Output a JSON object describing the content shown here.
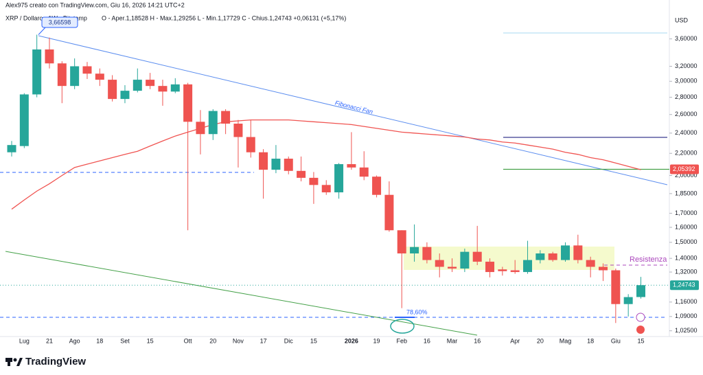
{
  "header": "Alex975 creato con TradingView.com, Giu 16, 2026 14:21 UTC+2",
  "brand": "TradingView",
  "chart_data": {
    "type": "candlestick",
    "title": "XRP / Dollaro · 1W · Bitstamp",
    "subtitle": "O - Aper.1,18528  H - Max.1,29256  L - Min.1,17729  C - Chius.1,24743  +0,06131 (+5,17%)",
    "y_unit": "USD",
    "log": true,
    "up_color": "#26a69a",
    "down_color": "#ef5350",
    "categories": [
      null,
      "Lug",
      null,
      "21",
      null,
      "Ago",
      null,
      "18",
      null,
      "Set",
      null,
      "15",
      null,
      null,
      "Ott",
      null,
      "20",
      null,
      "Nov",
      null,
      "17",
      null,
      "Dic",
      null,
      "15",
      null,
      null,
      "2026",
      null,
      "19",
      null,
      "Feb",
      null,
      "16",
      null,
      "Mar",
      null,
      "16",
      null,
      null,
      "Apr",
      null,
      "20",
      null,
      "Mag",
      null,
      "18",
      null,
      "Giu",
      null,
      "15"
    ],
    "open": [
      2.21,
      2.27,
      2.835,
      3.44,
      3.24,
      2.94,
      3.2,
      3.1,
      3.02,
      2.78,
      2.88,
      3.02,
      2.94,
      2.87,
      2.96,
      2.52,
      2.39,
      2.64,
      2.5,
      2.36,
      2.21,
      2.05,
      2.15,
      2.04,
      1.98,
      1.92,
      1.86,
      2.1,
      2.07,
      1.99,
      1.84,
      1.58,
      1.43,
      1.47,
      1.39,
      1.35,
      1.34,
      1.44,
      1.38,
      1.335,
      1.33,
      1.32,
      1.39,
      1.43,
      1.39,
      1.48,
      1.39,
      1.35,
      1.33,
      1.15,
      1.18528
    ],
    "high": [
      2.32,
      2.85,
      3.66598,
      3.62,
      3.27,
      3.31,
      3.26,
      3.17,
      3.08,
      2.95,
      3.17,
      3.11,
      3.02,
      3.04,
      2.98,
      2.65,
      2.66,
      2.66,
      2.54,
      2.54,
      2.24,
      2.28,
      2.17,
      2.17,
      2.03,
      1.96,
      2.11,
      2.41,
      2.22,
      2.0,
      1.95,
      1.58,
      1.62,
      1.5,
      1.43,
      1.4,
      1.46,
      1.61,
      1.4,
      1.35,
      1.39,
      1.51,
      1.45,
      1.44,
      1.5,
      1.55,
      1.41,
      1.37,
      1.34,
      1.2,
      1.29256
    ],
    "low": [
      2.17,
      2.25,
      2.8,
      3.17,
      2.73,
      2.9,
      3.03,
      2.94,
      2.75,
      2.73,
      2.86,
      2.9,
      2.7,
      2.85,
      1.58,
      2.19,
      2.33,
      2.39,
      2.07,
      2.16,
      1.81,
      2.02,
      2.01,
      1.95,
      1.77,
      1.84,
      1.81,
      2.05,
      1.96,
      1.82,
      1.57,
      1.13,
      1.38,
      1.37,
      1.29,
      1.32,
      1.32,
      1.36,
      1.29,
      1.3,
      1.31,
      1.31,
      1.37,
      1.38,
      1.38,
      1.37,
      1.29,
      1.27,
      1.06,
      1.09,
      1.17729
    ],
    "close": [
      2.28,
      2.835,
      3.44,
      3.24,
      2.94,
      3.2,
      3.1,
      3.02,
      2.78,
      2.88,
      3.02,
      2.94,
      2.87,
      2.96,
      2.52,
      2.39,
      2.64,
      2.5,
      2.36,
      2.21,
      2.05,
      2.15,
      2.04,
      1.98,
      1.92,
      1.86,
      2.1,
      2.07,
      1.99,
      1.84,
      1.58,
      1.43,
      1.47,
      1.39,
      1.35,
      1.34,
      1.44,
      1.38,
      1.32,
      1.325,
      1.32,
      1.39,
      1.43,
      1.39,
      1.48,
      1.39,
      1.35,
      1.33,
      1.15,
      1.185,
      1.24743
    ],
    "series": [
      {
        "color": "#f05350",
        "values": [
          1.73,
          1.8,
          1.87,
          1.93,
          2.0,
          2.07,
          2.1,
          2.13,
          2.16,
          2.19,
          2.22,
          2.27,
          2.32,
          2.37,
          2.41,
          2.45,
          2.49,
          2.52,
          2.53,
          2.54,
          2.54,
          2.54,
          2.54,
          2.53,
          2.52,
          2.51,
          2.5,
          2.49,
          2.47,
          2.45,
          2.43,
          2.41,
          2.4,
          2.39,
          2.38,
          2.37,
          2.36,
          2.34,
          2.33,
          2.31,
          2.3,
          2.28,
          2.26,
          2.24,
          2.21,
          2.19,
          2.16,
          2.14,
          2.11,
          2.08,
          2.05
        ]
      }
    ],
    "ylim": [
      1,
      4
    ],
    "yticks": [
      {
        "value": 3.6,
        "label": "3,60000"
      },
      {
        "value": 3.2,
        "label": "3,20000"
      },
      {
        "value": 3.0,
        "label": "3,00000"
      },
      {
        "value": 2.8,
        "label": "2,80000"
      },
      {
        "value": 2.6,
        "label": "2,60000"
      },
      {
        "value": 2.4,
        "label": "2,40000"
      },
      {
        "value": 2.2,
        "label": "2,20000"
      },
      {
        "value": 2.0,
        "label": "2,00000"
      },
      {
        "value": 1.85,
        "label": "1,85000"
      },
      {
        "value": 1.7,
        "label": "1,70000"
      },
      {
        "value": 1.6,
        "label": "1,60000"
      },
      {
        "value": 1.5,
        "label": "1,50000"
      },
      {
        "value": 1.4,
        "label": "1,40000"
      },
      {
        "value": 1.32,
        "label": "1,32000"
      },
      {
        "value": 1.16,
        "label": "1,16000"
      },
      {
        "value": 1.09,
        "label": "1,09000"
      },
      {
        "value": 1.025,
        "label": "1,02500"
      }
    ],
    "last_price": {
      "value": 1.24743,
      "label": "1,24743",
      "color": "#26a69a"
    },
    "level_price": {
      "value": 2.05392,
      "label": "2,05392",
      "color": "#f05350"
    },
    "high_label": {
      "value": 3.66598,
      "label": "3,66598"
    },
    "annotations": {
      "fan": "Fibonacci Fan",
      "resistance": "Resistenza",
      "fib_level": "78,60%"
    }
  }
}
